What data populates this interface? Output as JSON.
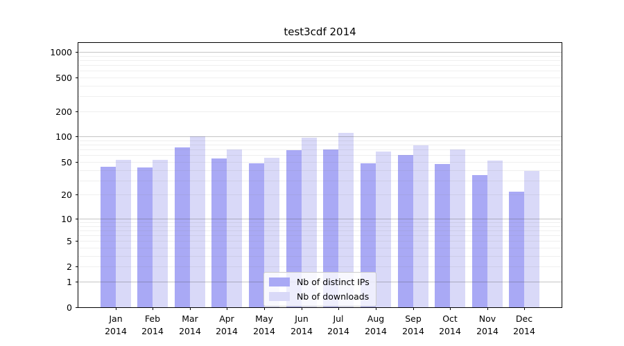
{
  "chart_data": {
    "type": "bar",
    "title": "test3cdf 2014",
    "categories": [
      "Jan",
      "Feb",
      "Mar",
      "Apr",
      "May",
      "Jun",
      "Jul",
      "Aug",
      "Sep",
      "Oct",
      "Nov",
      "Dec"
    ],
    "category_year": "2014",
    "series": [
      {
        "name": "Nb of distinct IPs",
        "color": "#a9a9f5",
        "values": [
          44,
          43,
          75,
          55,
          48,
          69,
          70,
          48,
          60,
          47,
          35,
          22
        ]
      },
      {
        "name": "Nb of downloads",
        "color": "#d9d9f8",
        "values": [
          53,
          53,
          100,
          70,
          56,
          97,
          110,
          66,
          79,
          70,
          52,
          39
        ]
      }
    ],
    "y_ticks": [
      0,
      1,
      2,
      5,
      10,
      20,
      50,
      100,
      200,
      500,
      1000
    ],
    "y_minor_gridlines": [
      2,
      3,
      4,
      5,
      6,
      7,
      8,
      9,
      20,
      30,
      40,
      50,
      60,
      70,
      80,
      90,
      200,
      300,
      400,
      500,
      600,
      700,
      800,
      900
    ],
    "y_major_gridlines": [
      1,
      10,
      100,
      1000
    ],
    "y_scale": "log1p",
    "ylim": [
      0,
      1270
    ],
    "xlabel": "",
    "ylabel": "",
    "grid": true,
    "legend_position": "lower center"
  }
}
